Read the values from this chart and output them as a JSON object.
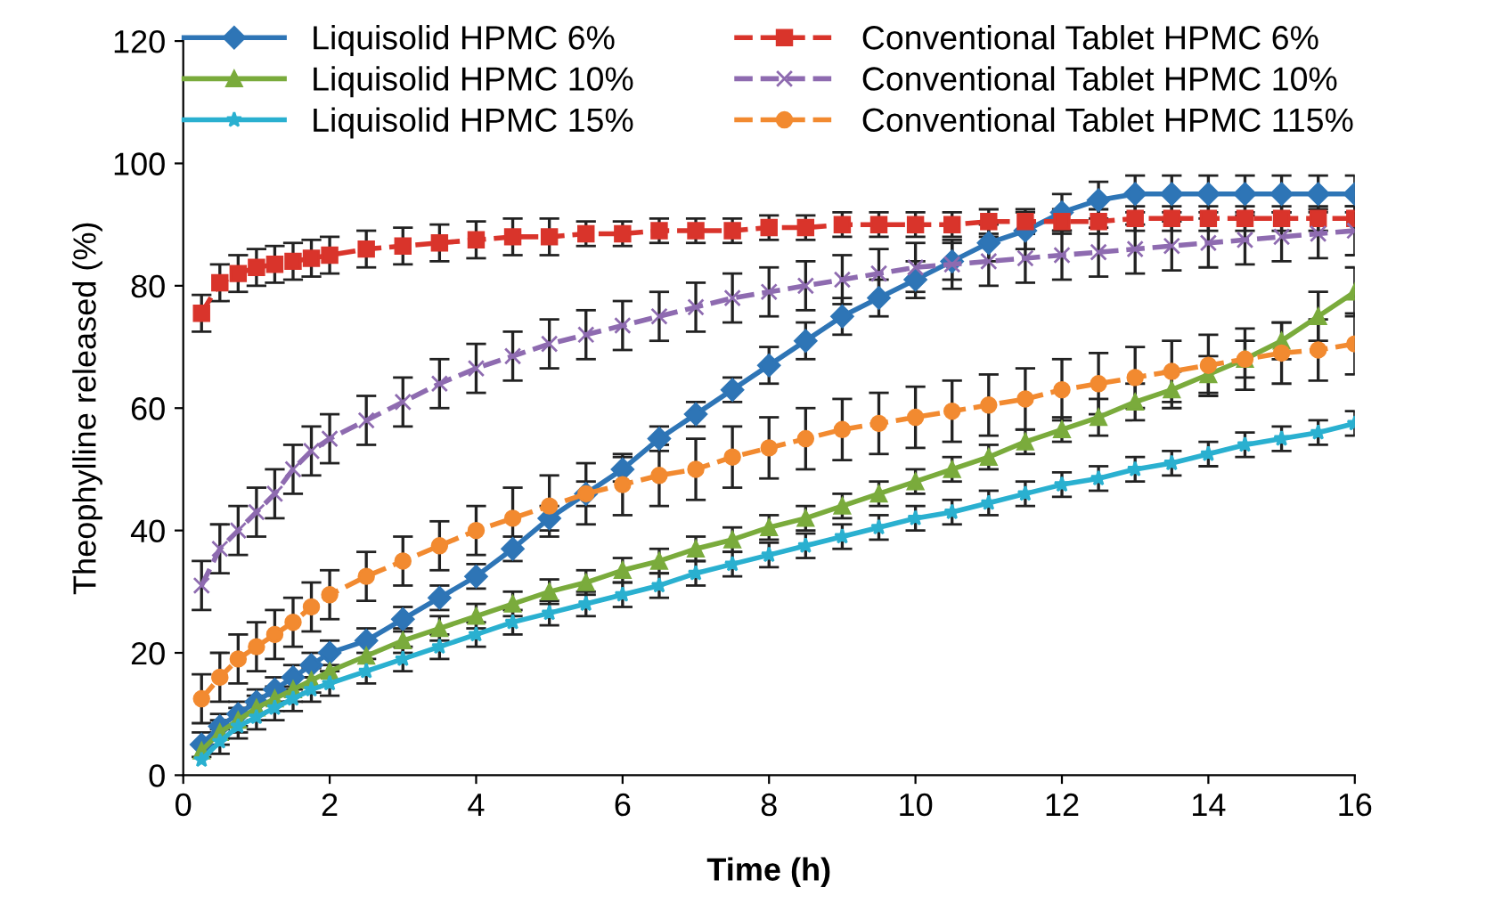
{
  "chart_data": {
    "type": "line",
    "xlabel": "Time (h)",
    "ylabel": "Theophylline released (%)",
    "x": [
      0.25,
      0.5,
      0.75,
      1,
      1.25,
      1.5,
      1.75,
      2,
      2.5,
      3,
      3.5,
      4,
      4.5,
      5,
      5.5,
      6,
      6.5,
      7,
      7.5,
      8,
      8.5,
      9,
      9.5,
      10,
      10.5,
      11,
      11.5,
      12,
      12.5,
      13,
      13.5,
      14,
      14.5,
      15,
      15.5,
      16
    ],
    "xlim": [
      0,
      16
    ],
    "xticks": [
      0,
      2,
      4,
      6,
      8,
      10,
      12,
      14,
      16
    ],
    "ylim": [
      0,
      120
    ],
    "yticks": [
      0,
      20,
      40,
      60,
      80,
      100,
      120
    ],
    "grid": false,
    "legend": "top",
    "series": [
      {
        "name": "Liquisolid HPMC 6%",
        "color": "#2e75b6",
        "marker": "diamond",
        "line_style": "solid",
        "values": [
          5,
          8,
          10,
          12,
          14,
          16,
          18,
          20,
          22,
          25.5,
          29,
          32.5,
          37,
          42,
          46,
          50,
          55,
          59,
          63,
          67,
          71,
          75,
          78,
          81,
          84,
          87,
          89,
          92,
          94,
          95,
          95,
          95,
          95,
          95,
          95,
          95
        ],
        "errors": [
          2,
          2,
          2,
          2,
          2,
          2,
          2,
          2,
          2,
          2,
          2,
          2,
          2,
          2,
          2,
          2,
          2,
          2,
          2,
          3,
          3,
          3,
          3,
          3,
          3,
          3,
          3,
          3,
          3,
          3,
          3,
          3,
          3,
          3,
          3,
          3
        ]
      },
      {
        "name": "Conventional Tablet HPMC 6%",
        "color": "#d9342b",
        "marker": "square",
        "line_style": "dashed",
        "values": [
          75.5,
          80.5,
          82,
          83,
          83.5,
          84,
          84.5,
          85,
          86,
          86.5,
          87,
          87.5,
          88,
          88,
          88.5,
          88.5,
          89,
          89,
          89,
          89.5,
          89.5,
          90,
          90,
          90,
          90,
          90.5,
          90.5,
          90.5,
          90.5,
          91,
          91,
          91,
          91,
          91,
          91,
          91
        ],
        "errors": [
          3,
          3,
          3,
          3,
          3,
          3,
          3,
          3,
          3,
          3,
          3,
          3,
          3,
          3,
          2,
          2,
          2,
          2,
          2,
          2,
          2,
          2,
          2,
          2,
          2,
          2,
          2,
          2,
          2,
          2,
          2,
          2,
          2,
          2,
          2,
          2
        ]
      },
      {
        "name": "Liquisolid HPMC 10%",
        "color": "#7aab3c",
        "marker": "triangle",
        "line_style": "solid",
        "values": [
          4,
          7,
          9,
          11,
          12.5,
          14,
          15.5,
          17,
          19.5,
          22,
          24,
          26,
          28,
          30,
          31.5,
          33.5,
          35,
          37,
          38.5,
          40.5,
          42,
          44,
          46,
          48,
          50,
          52,
          54.5,
          56.5,
          58.5,
          61,
          63,
          65.5,
          68,
          71,
          75,
          79
        ],
        "errors": [
          null,
          2,
          2,
          2,
          2,
          2,
          2,
          null,
          null,
          2,
          2,
          2,
          2,
          2,
          2,
          2,
          2,
          2,
          2,
          2,
          2,
          2,
          2,
          2,
          2,
          2,
          2,
          2,
          3,
          3,
          3,
          3,
          3,
          3,
          4,
          4
        ]
      },
      {
        "name": "Conventional Tablet HPMC 10%",
        "color": "#8e6bb0",
        "marker": "cross",
        "line_style": "dashed",
        "values": [
          31,
          37,
          40,
          43,
          46,
          50,
          53,
          55,
          58,
          61,
          64,
          66.5,
          68.5,
          70.5,
          72,
          73.5,
          75,
          76.5,
          78,
          79,
          80,
          81,
          82,
          83,
          83.5,
          84,
          84.5,
          85,
          85.5,
          86,
          86.5,
          87,
          87.5,
          88,
          88.5,
          89
        ],
        "errors": [
          4,
          4,
          4,
          4,
          4,
          4,
          4,
          4,
          4,
          4,
          4,
          4,
          4,
          4,
          4,
          4,
          4,
          4,
          4,
          4,
          4,
          4,
          4,
          4,
          4,
          4,
          4,
          4,
          4,
          4,
          4,
          4,
          4,
          4,
          4,
          4
        ]
      },
      {
        "name": "Liquisolid HPMC 15%",
        "color": "#2ab0d0",
        "marker": "star",
        "line_style": "solid",
        "values": [
          2.5,
          5.5,
          8,
          9.5,
          11,
          12.5,
          14,
          15,
          17,
          19,
          21,
          23,
          25,
          26.5,
          28,
          29.5,
          31,
          33,
          34.5,
          36,
          37.5,
          39,
          40.5,
          42,
          43,
          44.5,
          46,
          47.5,
          48.5,
          50,
          51,
          52.5,
          54,
          55,
          56,
          57.5
        ],
        "errors": [
          null,
          2,
          2,
          2,
          2,
          2,
          2,
          2,
          2,
          2,
          2,
          2,
          2,
          2,
          2,
          2,
          2,
          2,
          2,
          2,
          2,
          2,
          2,
          2,
          2,
          2,
          2,
          2,
          2,
          2,
          2,
          2,
          2,
          2,
          2,
          2
        ]
      },
      {
        "name": "Conventional Tablet HPMC 115%",
        "color": "#f28a30",
        "marker": "circle",
        "line_style": "dashed",
        "values": [
          12.5,
          16,
          19,
          21,
          23,
          25,
          27.5,
          29.5,
          32.5,
          35,
          37.5,
          40,
          42,
          44,
          46,
          47.5,
          49,
          50,
          52,
          53.5,
          55,
          56.5,
          57.5,
          58.5,
          59.5,
          60.5,
          61.5,
          63,
          64,
          65,
          66,
          67,
          68,
          69,
          69.5,
          70.5
        ],
        "errors": [
          4,
          4,
          4,
          4,
          4,
          4,
          4,
          4,
          4,
          4,
          4,
          4,
          5,
          5,
          5,
          5,
          5,
          5,
          5,
          5,
          5,
          5,
          5,
          5,
          5,
          5,
          5,
          5,
          5,
          5,
          5,
          5,
          5,
          5,
          5,
          5
        ]
      }
    ]
  }
}
